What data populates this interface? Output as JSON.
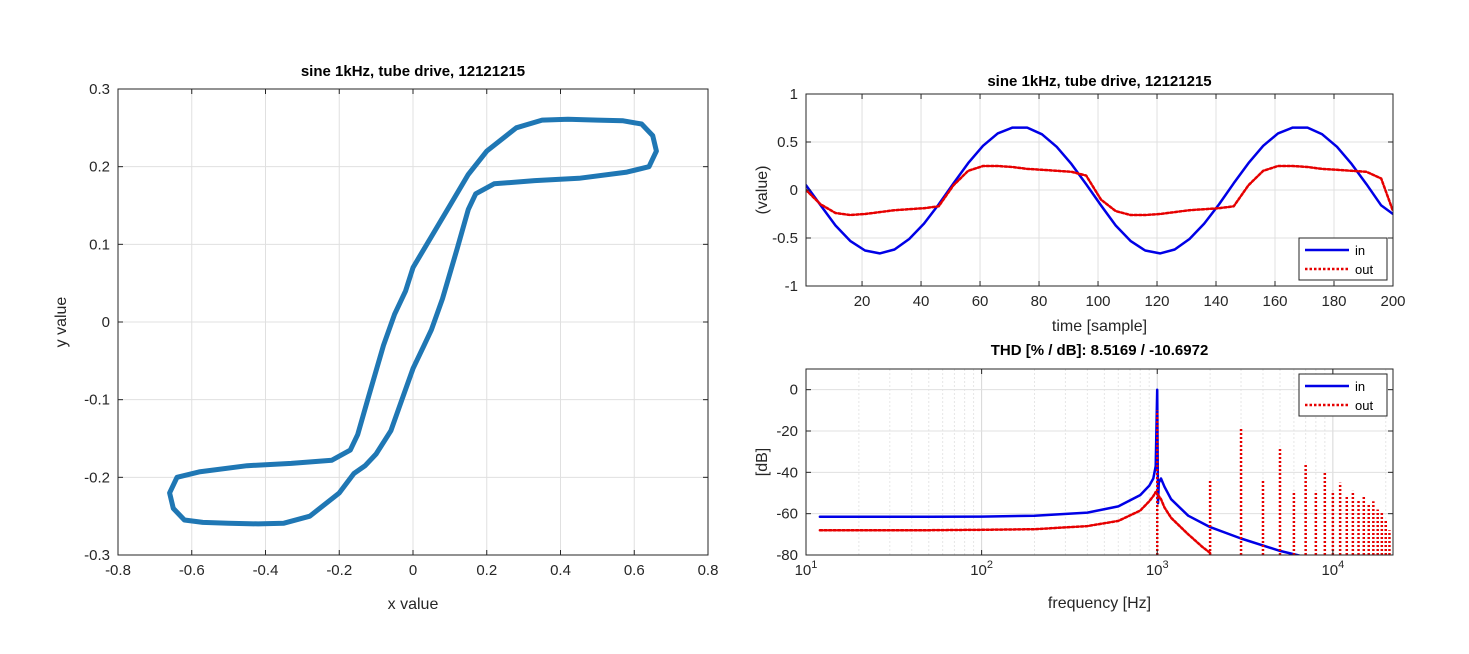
{
  "chart_data": [
    {
      "type": "line",
      "title": "sine 1kHz, tube drive, 12121215",
      "xlabel": "x value",
      "ylabel": "y value",
      "xlim": [
        -0.8,
        0.8
      ],
      "ylim": [
        -0.3,
        0.3
      ],
      "xticks": [
        -0.8,
        -0.6,
        -0.4,
        -0.2,
        0,
        0.2,
        0.4,
        0.6,
        0.8
      ],
      "yticks": [
        -0.3,
        -0.2,
        -0.1,
        0,
        0.1,
        0.2,
        0.3
      ],
      "xtick_labels": [
        "-0.8",
        "-0.6",
        "-0.4",
        "-0.2",
        "0",
        "0.2",
        "0.4",
        "0.6",
        "0.8"
      ],
      "ytick_labels": [
        "-0.3",
        "-0.2",
        "-0.1",
        "0",
        "0.1",
        "0.2",
        "0.3"
      ],
      "grid": true,
      "series": [
        {
          "color": "#1f77b4",
          "x": [
            0.0,
            0.05,
            0.1,
            0.15,
            0.2,
            0.28,
            0.35,
            0.42,
            0.5,
            0.57,
            0.62,
            0.65,
            0.66,
            0.64,
            0.58,
            0.45,
            0.33,
            0.22,
            0.17,
            0.15,
            0.12,
            0.08,
            0.05,
            0.03,
            0.0,
            -0.03,
            -0.06,
            -0.1,
            -0.13,
            -0.16,
            -0.2,
            -0.28,
            -0.35,
            -0.42,
            -0.5,
            -0.57,
            -0.62,
            -0.65,
            -0.66,
            -0.64,
            -0.58,
            -0.45,
            -0.33,
            -0.22,
            -0.17,
            -0.15,
            -0.12,
            -0.08,
            -0.05,
            -0.02,
            0.0
          ],
          "y": [
            0.07,
            0.11,
            0.15,
            0.19,
            0.22,
            0.25,
            0.26,
            0.261,
            0.26,
            0.259,
            0.255,
            0.24,
            0.22,
            0.2,
            0.193,
            0.185,
            0.182,
            0.178,
            0.165,
            0.145,
            0.095,
            0.03,
            -0.01,
            -0.03,
            -0.06,
            -0.1,
            -0.14,
            -0.17,
            -0.185,
            -0.195,
            -0.22,
            -0.25,
            -0.259,
            -0.26,
            -0.259,
            -0.258,
            -0.255,
            -0.24,
            -0.22,
            -0.2,
            -0.193,
            -0.185,
            -0.182,
            -0.178,
            -0.165,
            -0.145,
            -0.095,
            -0.03,
            0.01,
            0.04,
            0.07
          ]
        }
      ]
    },
    {
      "type": "line",
      "title": "sine 1kHz, tube drive, 12121215",
      "xlabel": "time [sample]",
      "ylabel": "(value)",
      "xlim": [
        1,
        200
      ],
      "ylim": [
        -1,
        1
      ],
      "xticks": [
        20,
        40,
        60,
        80,
        100,
        120,
        140,
        160,
        180,
        200
      ],
      "yticks": [
        -1,
        -0.5,
        0,
        0.5,
        1
      ],
      "xtick_labels": [
        "20",
        "40",
        "60",
        "80",
        "100",
        "120",
        "140",
        "160",
        "180",
        "200"
      ],
      "ytick_labels": [
        "-1",
        "-0.5",
        "0",
        "0.5",
        "1"
      ],
      "grid": true,
      "legend": "bottom-right",
      "series": [
        {
          "name": "in",
          "color": "#0000e6",
          "style": "solid",
          "x": [
            1,
            6,
            11,
            16,
            21,
            26,
            31,
            36,
            41,
            46,
            51,
            56,
            61,
            66,
            71,
            76,
            81,
            86,
            91,
            96,
            101,
            106,
            111,
            116,
            121,
            126,
            131,
            136,
            141,
            146,
            151,
            156,
            161,
            166,
            171,
            176,
            181,
            186,
            191,
            196,
            200
          ],
          "y": [
            0.05,
            -0.16,
            -0.37,
            -0.53,
            -0.63,
            -0.66,
            -0.62,
            -0.51,
            -0.35,
            -0.15,
            0.07,
            0.28,
            0.46,
            0.59,
            0.65,
            0.65,
            0.58,
            0.45,
            0.27,
            0.06,
            -0.16,
            -0.37,
            -0.53,
            -0.63,
            -0.66,
            -0.62,
            -0.51,
            -0.35,
            -0.15,
            0.07,
            0.28,
            0.46,
            0.59,
            0.65,
            0.65,
            0.58,
            0.45,
            0.27,
            0.06,
            -0.16,
            -0.25
          ]
        },
        {
          "name": "out",
          "color": "#e60000",
          "style": "dotted",
          "x": [
            1,
            6,
            11,
            16,
            21,
            26,
            31,
            36,
            41,
            46,
            51,
            56,
            61,
            66,
            71,
            76,
            81,
            86,
            91,
            96,
            101,
            106,
            111,
            116,
            121,
            126,
            131,
            136,
            141,
            146,
            151,
            156,
            161,
            166,
            171,
            176,
            181,
            186,
            191,
            196,
            200
          ],
          "y": [
            0.0,
            -0.15,
            -0.24,
            -0.26,
            -0.25,
            -0.23,
            -0.21,
            -0.2,
            -0.19,
            -0.17,
            0.05,
            0.2,
            0.25,
            0.25,
            0.24,
            0.22,
            0.21,
            0.2,
            0.19,
            0.15,
            -0.1,
            -0.22,
            -0.26,
            -0.26,
            -0.25,
            -0.23,
            -0.21,
            -0.2,
            -0.19,
            -0.17,
            0.05,
            0.2,
            0.25,
            0.25,
            0.24,
            0.22,
            0.21,
            0.2,
            0.19,
            0.12,
            -0.22
          ]
        }
      ]
    },
    {
      "type": "line",
      "title": "THD [% / dB]:  8.5169 / -10.6972",
      "xlabel": "frequency [Hz]",
      "ylabel": "[dB]",
      "xscale": "log",
      "xlim": [
        10,
        22000
      ],
      "ylim": [
        -80,
        10
      ],
      "xticks": [
        10,
        100,
        1000,
        10000
      ],
      "xtick_labels": [
        "10",
        "10",
        "10",
        "10"
      ],
      "xtick_exponents": [
        "1",
        "2",
        "3",
        "4"
      ],
      "yticks": [
        -80,
        -60,
        -40,
        -20,
        0
      ],
      "ytick_labels": [
        "-80",
        "-60",
        "-40",
        "-20",
        "0"
      ],
      "grid": true,
      "legend": "top-right",
      "series": [
        {
          "name": "in",
          "color": "#0000e6",
          "style": "solid",
          "x": [
            12,
            20,
            50,
            100,
            200,
            400,
            600,
            800,
            900,
            950,
            980,
            1000,
            1010,
            1020,
            1050,
            1100,
            1200,
            1500,
            2000,
            3000,
            5000,
            7000
          ],
          "y": [
            -61.5,
            -61.5,
            -61.5,
            -61.4,
            -61,
            -59.5,
            -56.5,
            -51,
            -46.5,
            -43,
            -37,
            0,
            -55,
            -45,
            -43,
            -47,
            -53,
            -61,
            -66.5,
            -72,
            -78,
            -81
          ]
        },
        {
          "name": "out",
          "color": "#e60000",
          "style": "dotted",
          "harmonics": [
            {
              "f": 1000,
              "db": -10
            },
            {
              "f": 2000,
              "db": -44
            },
            {
              "f": 3000,
              "db": -19
            },
            {
              "f": 4000,
              "db": -44
            },
            {
              "f": 5000,
              "db": -28
            },
            {
              "f": 6000,
              "db": -49
            },
            {
              "f": 7000,
              "db": -36
            },
            {
              "f": 8000,
              "db": -49
            },
            {
              "f": 9000,
              "db": -40
            },
            {
              "f": 10000,
              "db": -49
            },
            {
              "f": 11000,
              "db": -45
            },
            {
              "f": 12000,
              "db": -51
            },
            {
              "f": 13000,
              "db": -49
            },
            {
              "f": 14000,
              "db": -53
            },
            {
              "f": 15000,
              "db": -51
            },
            {
              "f": 16000,
              "db": -55
            },
            {
              "f": 17000,
              "db": -54
            },
            {
              "f": 18000,
              "db": -58
            },
            {
              "f": 19000,
              "db": -59
            },
            {
              "f": 20000,
              "db": -63
            },
            {
              "f": 21000,
              "db": -68
            }
          ],
          "x": [
            12,
            20,
            50,
            100,
            200,
            400,
            600,
            800,
            900,
            950,
            980,
            1020,
            1050,
            1100,
            1200,
            1500,
            1800,
            2000
          ],
          "y": [
            -68,
            -68,
            -68,
            -67.8,
            -67.5,
            -66,
            -63.5,
            -58.5,
            -54,
            -51.5,
            -49.5,
            -51.5,
            -53,
            -57,
            -62,
            -70,
            -76,
            -79
          ]
        }
      ]
    }
  ]
}
